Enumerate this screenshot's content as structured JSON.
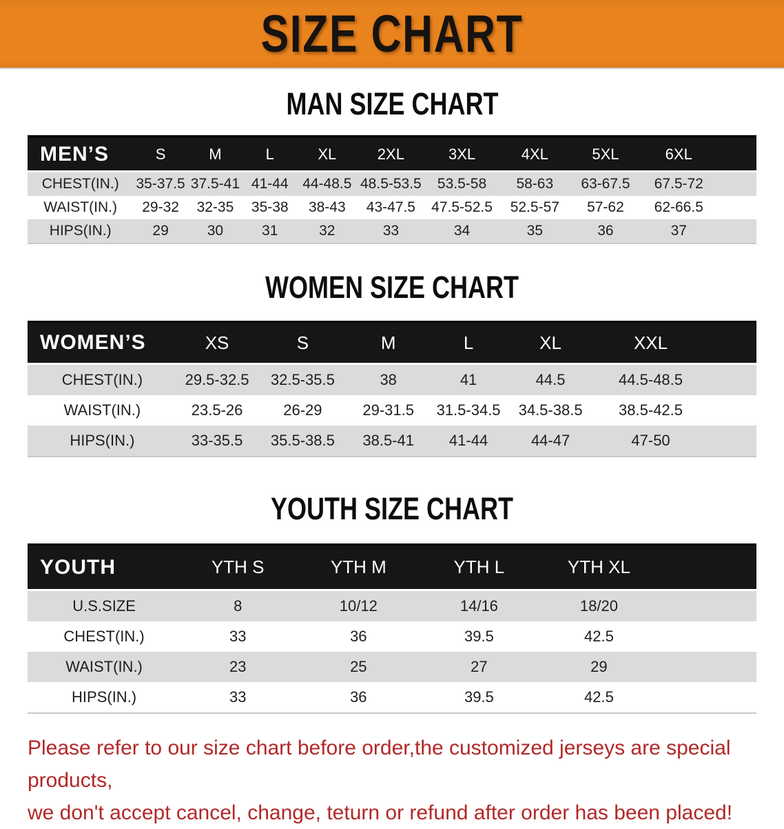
{
  "banner": {
    "title": "SIZE CHART",
    "bg_color": "#E8831E",
    "text_color": "#171310"
  },
  "colors": {
    "table_header_bg": "#161616",
    "table_header_text": "#FFFFFF",
    "row_shaded": "#DBDBDB",
    "row_plain": "#FFFFFF",
    "footer_text": "#B22828"
  },
  "men_section": {
    "heading": "MAN SIZE CHART",
    "table": {
      "label": "MEN’S",
      "columns": [
        "S",
        "M",
        "L",
        "XL",
        "2XL",
        "3XL",
        "4XL",
        "5XL",
        "6XL"
      ],
      "rows": [
        {
          "label": "CHEST(IN.)",
          "values": [
            "35-37.5",
            "37.5-41",
            "41-44",
            "44-48.5",
            "48.5-53.5",
            "53.5-58",
            "58-63",
            "63-67.5",
            "67.5-72"
          ]
        },
        {
          "label": "WAIST(IN.)",
          "values": [
            "29-32",
            "32-35",
            "35-38",
            "38-43",
            "43-47.5",
            "47.5-52.5",
            "52.5-57",
            "57-62",
            "62-66.5"
          ]
        },
        {
          "label": "HIPS(IN.)",
          "values": [
            "29",
            "30",
            "31",
            "32",
            "33",
            "34",
            "35",
            "36",
            "37"
          ]
        }
      ]
    }
  },
  "women_section": {
    "heading": "WOMEN SIZE CHART",
    "table": {
      "label": "WOMEN’S",
      "columns": [
        "XS",
        "S",
        "M",
        "L",
        "XL",
        "XXL"
      ],
      "rows": [
        {
          "label": "CHEST(IN.)",
          "values": [
            "29.5-32.5",
            "32.5-35.5",
            "38",
            "41",
            "44.5",
            "44.5-48.5"
          ]
        },
        {
          "label": "WAIST(IN.)",
          "values": [
            "23.5-26",
            "26-29",
            "29-31.5",
            "31.5-34.5",
            "34.5-38.5",
            "38.5-42.5"
          ]
        },
        {
          "label": "HIPS(IN.)",
          "values": [
            "33-35.5",
            "35.5-38.5",
            "38.5-41",
            "41-44",
            "44-47",
            "47-50"
          ]
        }
      ]
    }
  },
  "youth_section": {
    "heading": "YOUTH SIZE CHART",
    "table": {
      "label": "YOUTH",
      "columns": [
        "YTH S",
        "YTH M",
        "YTH L",
        "YTH XL"
      ],
      "rows": [
        {
          "label": "U.S.SIZE",
          "values": [
            "8",
            "10/12",
            "14/16",
            "18/20"
          ]
        },
        {
          "label": "CHEST(IN.)",
          "values": [
            "33",
            "36",
            "39.5",
            "42.5"
          ]
        },
        {
          "label": "WAIST(IN.)",
          "values": [
            "23",
            "25",
            "27",
            "29"
          ]
        },
        {
          "label": "HIPS(IN.)",
          "values": [
            "33",
            "36",
            "39.5",
            "42.5"
          ]
        }
      ]
    }
  },
  "footer": {
    "line1": "Please refer to our size chart before order,the customized jerseys are special products,",
    "line2": "we don't accept cancel, change, teturn or refund after order has been placed!"
  }
}
